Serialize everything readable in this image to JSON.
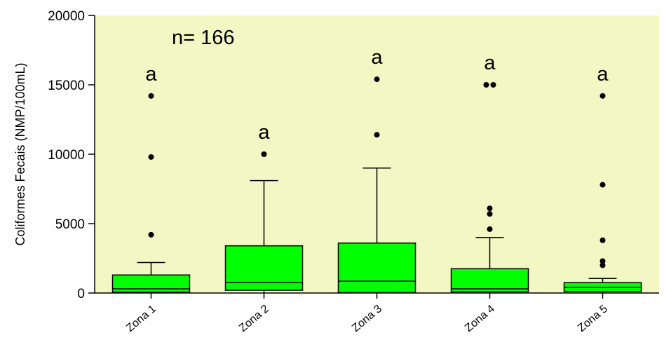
{
  "chart_data": {
    "type": "box",
    "ylabel": "Coliformes Fecais (NMP/100mL)",
    "ylim": [
      0,
      20000
    ],
    "yticks": [
      0,
      5000,
      10000,
      15000,
      20000
    ],
    "annotation": "n= 166",
    "grid": false,
    "colors": {
      "plot_bg": "#f2f7c3",
      "box_fill": "#00ff00",
      "box_stroke": "#000000"
    },
    "categories": [
      "Zona 1",
      "Zona 2",
      "Zona 3",
      "Zona 4",
      "Zona 5"
    ],
    "boxes": [
      {
        "category": "Zona 1",
        "whisker_low": 0,
        "q1": 60,
        "median": 300,
        "q3": 1300,
        "whisker_high": 2200,
        "outliers": [
          4200,
          9800,
          14200
        ],
        "group_label": "a"
      },
      {
        "category": "Zona 2",
        "whisker_low": 0,
        "q1": 200,
        "median": 750,
        "q3": 3400,
        "whisker_high": 8100,
        "outliers": [
          10000
        ],
        "group_label": "a"
      },
      {
        "category": "Zona 3",
        "whisker_low": 0,
        "q1": 30,
        "median": 850,
        "q3": 3600,
        "whisker_high": 9000,
        "outliers": [
          11400,
          15400
        ],
        "group_label": "a"
      },
      {
        "category": "Zona 4",
        "whisker_low": 0,
        "q1": 80,
        "median": 300,
        "q3": 1750,
        "whisker_high": 4000,
        "outliers": [
          4600,
          5700,
          6100,
          15000,
          15000
        ],
        "group_label": "a"
      },
      {
        "category": "Zona 5",
        "whisker_low": 0,
        "q1": 100,
        "median": 400,
        "q3": 750,
        "whisker_high": 1050,
        "outliers": [
          2000,
          2300,
          3800,
          7800,
          14200
        ],
        "group_label": "a"
      }
    ]
  }
}
